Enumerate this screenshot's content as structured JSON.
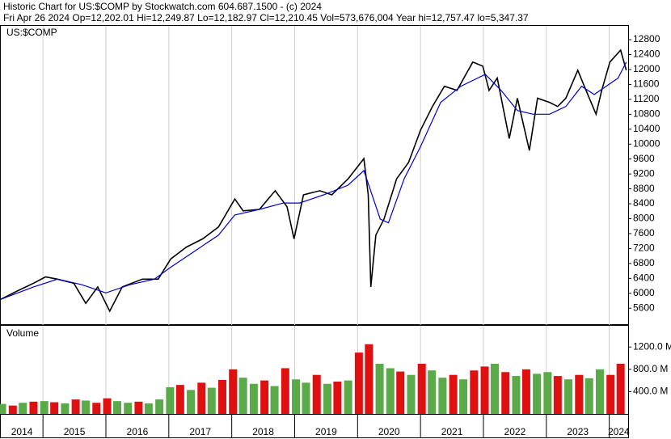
{
  "chart_data": [
    {
      "type": "line",
      "title": "Historic Chart for US:$COMP by Stockwatch.com 604.687.1500 - (c) 2024",
      "subtitle": "Fri Apr 26 2024   Op=12,202.01   Hi=12,249.87   Lo=12,182.97   Cl=12,210.45   Vol=573,676,004   Year hi=12,757.47   lo=5,347.37",
      "label": "US:$COMP",
      "xlim": [
        2014.33,
        2024.3
      ],
      "ylim": [
        5150,
        13170
      ],
      "yticks": [
        5600,
        6000,
        6400,
        6800,
        7200,
        7600,
        8000,
        8400,
        8800,
        9200,
        9600,
        10000,
        10400,
        10800,
        11200,
        11600,
        12000,
        12400,
        12800
      ],
      "grid": true,
      "series": [
        {
          "color": "#000000",
          "x": [
            2014.33,
            2014.59,
            2014.85,
            2015.04,
            2015.23,
            2015.49,
            2015.68,
            2015.87,
            2016.06,
            2016.26,
            2016.58,
            2016.83,
            2017.03,
            2017.28,
            2017.54,
            2017.79,
            2018.05,
            2018.18,
            2018.44,
            2018.69,
            2018.88,
            2018.99,
            2019.14,
            2019.4,
            2019.59,
            2019.85,
            2020.1,
            2020.17,
            2020.21,
            2020.29,
            2020.42,
            2020.62,
            2020.81,
            2021.0,
            2021.19,
            2021.38,
            2021.58,
            2021.83,
            2021.99,
            2022.09,
            2022.22,
            2022.41,
            2022.54,
            2022.73,
            2022.86,
            2023.05,
            2023.18,
            2023.31,
            2023.5,
            2023.63,
            2023.79,
            2023.88,
            2024.01,
            2024.18,
            2024.27
          ],
          "values": [
            5840,
            6060,
            6270,
            6440,
            6380,
            6270,
            5730,
            6170,
            5520,
            6170,
            6380,
            6380,
            6920,
            7240,
            7460,
            7780,
            8530,
            8210,
            8250,
            8750,
            8320,
            7460,
            8640,
            8750,
            8640,
            9070,
            9610,
            8640,
            6170,
            7560,
            7990,
            9070,
            9510,
            10370,
            11010,
            11550,
            11440,
            12200,
            12090,
            11440,
            11770,
            10150,
            11230,
            9830,
            11230,
            11120,
            11010,
            11230,
            11980,
            11440,
            10800,
            11440,
            12200,
            12520,
            11980
          ]
        },
        {
          "color": "#0000cc",
          "x": [
            2014.33,
            2014.85,
            2015.23,
            2015.62,
            2016.0,
            2016.38,
            2016.77,
            2017.03,
            2017.41,
            2017.79,
            2018.05,
            2018.44,
            2018.82,
            2019.08,
            2019.46,
            2019.85,
            2020.1,
            2020.36,
            2020.49,
            2020.74,
            2021.0,
            2021.32,
            2021.64,
            2022.03,
            2022.28,
            2022.54,
            2022.79,
            2023.05,
            2023.31,
            2023.56,
            2023.76,
            2023.95,
            2024.14,
            2024.27
          ],
          "values": [
            5840,
            6170,
            6380,
            6230,
            6010,
            6230,
            6380,
            6700,
            7130,
            7560,
            8100,
            8250,
            8420,
            8420,
            8640,
            8900,
            9290,
            7990,
            7890,
            9070,
            9930,
            11120,
            11550,
            11870,
            11440,
            10900,
            10800,
            10800,
            11010,
            11550,
            11330,
            11550,
            11770,
            12200
          ]
        }
      ]
    },
    {
      "type": "bar",
      "label": "Volume",
      "xlim": [
        2014.33,
        2024.3
      ],
      "ylim": [
        0,
        1580
      ],
      "yticks": [
        {
          "value": 400,
          "label": "400.0 M"
        },
        {
          "value": 800,
          "label": "800.0 M"
        },
        {
          "value": 1200,
          "label": "1200.0 M"
        }
      ],
      "xticks": [
        2014,
        2015,
        2016,
        2017,
        2018,
        2019,
        2020,
        2021,
        2022,
        2023,
        2024
      ],
      "grid": true,
      "x": [
        2014.35,
        2014.52,
        2014.68,
        2014.85,
        2015.02,
        2015.18,
        2015.35,
        2015.52,
        2015.68,
        2015.85,
        2016.02,
        2016.18,
        2016.35,
        2016.52,
        2016.68,
        2016.85,
        2017.02,
        2017.18,
        2017.35,
        2017.52,
        2017.68,
        2017.85,
        2018.02,
        2018.18,
        2018.35,
        2018.52,
        2018.68,
        2018.85,
        2019.02,
        2019.18,
        2019.35,
        2019.52,
        2019.68,
        2019.85,
        2020.02,
        2020.18,
        2020.35,
        2020.52,
        2020.68,
        2020.85,
        2021.02,
        2021.18,
        2021.35,
        2021.52,
        2021.68,
        2021.85,
        2022.02,
        2022.18,
        2022.35,
        2022.52,
        2022.68,
        2022.85,
        2023.02,
        2023.18,
        2023.35,
        2023.52,
        2023.68,
        2023.85,
        2024.02,
        2024.18
      ],
      "series": [
        {
          "color": "#5aaa4a",
          "values": [
            180,
            null,
            200,
            null,
            230,
            null,
            190,
            null,
            240,
            null,
            null,
            230,
            200,
            null,
            190,
            260,
            480,
            null,
            430,
            null,
            470,
            null,
            null,
            650,
            540,
            null,
            500,
            null,
            620,
            560,
            null,
            540,
            null,
            600,
            null,
            null,
            900,
            820,
            null,
            700,
            null,
            780,
            650,
            null,
            620,
            null,
            null,
            900,
            null,
            680,
            null,
            720,
            750,
            null,
            620,
            null,
            640,
            800,
            null,
            null
          ]
        },
        {
          "color": "#e01010",
          "values": [
            null,
            150,
            null,
            220,
            null,
            210,
            null,
            260,
            null,
            200,
            280,
            null,
            null,
            220,
            null,
            null,
            null,
            520,
            null,
            560,
            null,
            610,
            800,
            null,
            null,
            600,
            null,
            820,
            null,
            null,
            700,
            null,
            580,
            null,
            1100,
            1250,
            null,
            null,
            760,
            null,
            900,
            null,
            null,
            700,
            null,
            780,
            850,
            null,
            750,
            null,
            800,
            null,
            null,
            680,
            null,
            700,
            null,
            null,
            700,
            900
          ]
        }
      ]
    }
  ]
}
